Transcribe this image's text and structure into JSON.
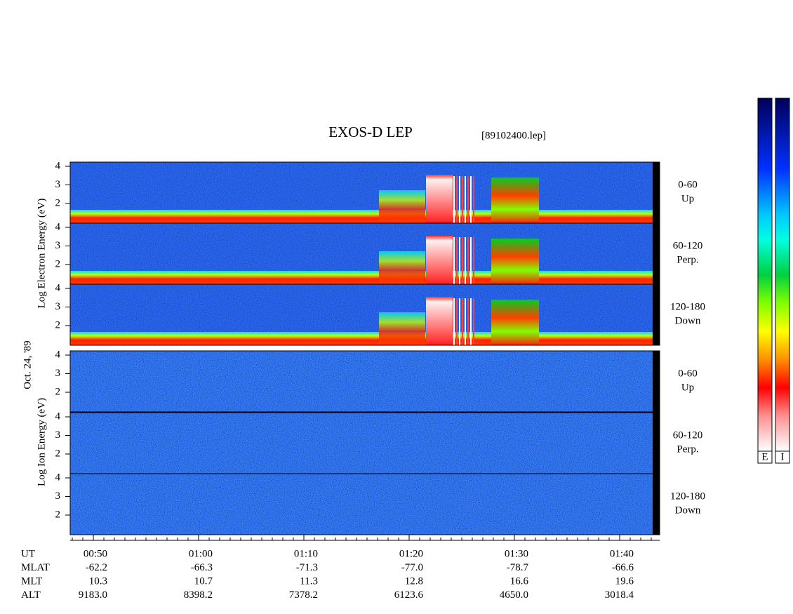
{
  "title": "EXOS-D LEP",
  "file": "[89102400.lep]",
  "date": "Oct. 24, '89",
  "groups": [
    {
      "label": "Log Electron Energy (eV)",
      "panels": [
        {
          "ticks": [
            4,
            3,
            2
          ],
          "angle": "0-60",
          "direction": "Up"
        },
        {
          "ticks": [
            4,
            3,
            2
          ],
          "angle": "60-120",
          "direction": "Perp."
        },
        {
          "ticks": [
            4,
            3,
            2
          ],
          "angle": "120-180",
          "direction": "Down"
        }
      ]
    },
    {
      "label": "Log Ion Energy (eV)",
      "panels": [
        {
          "ticks": [
            4,
            3,
            2
          ],
          "angle": "0-60",
          "direction": "Up"
        },
        {
          "ticks": [
            4,
            3,
            2
          ],
          "angle": "60-120",
          "direction": "Perp."
        },
        {
          "ticks": [
            4,
            3,
            2
          ],
          "angle": "120-180",
          "direction": "Down"
        }
      ]
    }
  ],
  "colorbars": [
    "E",
    "I"
  ],
  "orbit": {
    "rows": [
      "UT",
      "MLAT",
      "MLT",
      "ALT"
    ],
    "columns": [
      [
        "00:50",
        "-62.2",
        "10.3",
        "9183.0"
      ],
      [
        "01:00",
        "-66.3",
        "10.7",
        "8398.2"
      ],
      [
        "01:10",
        "-71.3",
        "11.3",
        "7378.2"
      ],
      [
        "01:20",
        "-77.0",
        "12.8",
        "6123.6"
      ],
      [
        "01:30",
        "-78.7",
        "16.6",
        "4650.0"
      ],
      [
        "01:40",
        "-66.6",
        "19.6",
        "3018.4"
      ]
    ]
  }
}
